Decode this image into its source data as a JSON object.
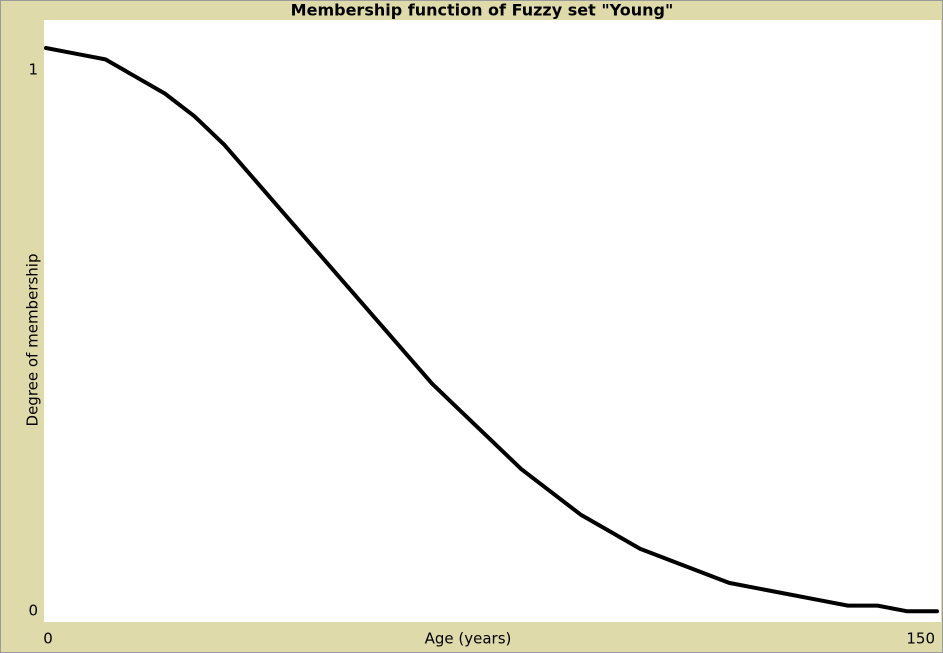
{
  "chart_data": {
    "type": "line",
    "title": "Membership function of Fuzzy set \"Young\"",
    "x_label": "Age (years)",
    "y_label": "Degree of membership",
    "x": [
      0,
      5,
      10,
      15,
      20,
      25,
      30,
      35,
      40,
      45,
      50,
      55,
      60,
      65,
      70,
      75,
      80,
      85,
      90,
      95,
      100,
      105,
      110,
      115,
      120,
      125,
      130,
      135,
      140,
      145,
      150
    ],
    "series": [
      {
        "color": "#000000",
        "values": [
          1.0,
          0.99,
          0.98,
          0.95,
          0.92,
          0.88,
          0.83,
          0.77,
          0.71,
          0.65,
          0.59,
          0.53,
          0.47,
          0.41,
          0.36,
          0.31,
          0.26,
          0.22,
          0.18,
          0.15,
          0.12,
          0.1,
          0.08,
          0.06,
          0.05,
          0.04,
          0.03,
          0.02,
          0.02,
          0.01,
          0.01
        ]
      }
    ],
    "xlim": [
      0,
      150
    ],
    "xticks": [
      0,
      150
    ],
    "ylim": [
      0,
      1
    ],
    "yticks": [
      0,
      1
    ]
  }
}
